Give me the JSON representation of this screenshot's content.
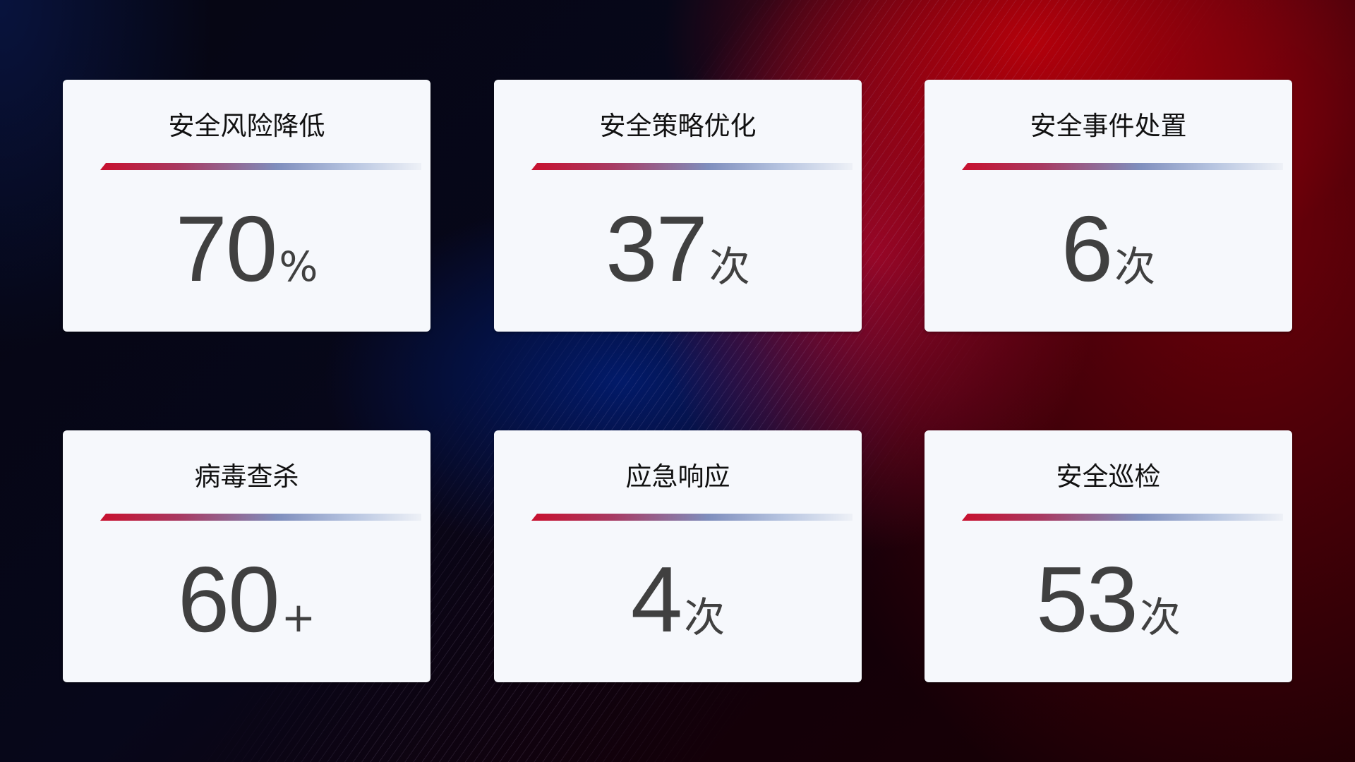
{
  "cards": [
    {
      "title": "安全风险降低",
      "value": "70",
      "unit": "%"
    },
    {
      "title": "安全策略优化",
      "value": "37",
      "unit": "次"
    },
    {
      "title": "安全事件处置",
      "value": "6",
      "unit": "次"
    },
    {
      "title": "病毒查杀",
      "value": "60",
      "unit": "+"
    },
    {
      "title": "应急响应",
      "value": "4",
      "unit": "次"
    },
    {
      "title": "安全巡检",
      "value": "53",
      "unit": "次"
    }
  ],
  "colors": {
    "accent_red": "#c8102e",
    "accent_blue": "#7f8ebd",
    "card_bg": "#f6f8fc",
    "value_text": "#404040"
  }
}
